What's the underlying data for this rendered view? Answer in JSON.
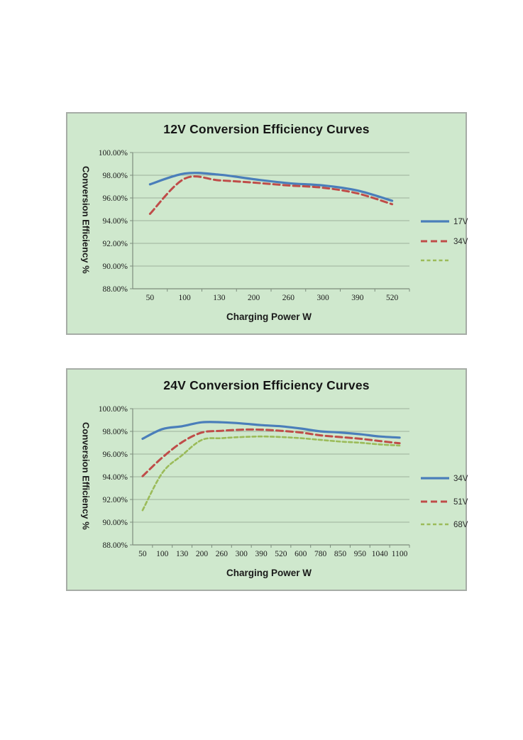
{
  "page": {
    "background": "#ffffff"
  },
  "styles": {
    "chart_background": "#cfe8cd",
    "chart_border": "#a6aca6",
    "grid_color": "#9cb19c",
    "axis_color": "#7d8d7d",
    "series_blue": "#4a7eba",
    "series_red": "#bf4c49",
    "series_green": "#9bbb59"
  },
  "chart_data": [
    {
      "type": "line",
      "title": "12V Conversion Efficiency Curves",
      "xlabel": "Charging Power W",
      "ylabel": "Conversion Efficiency %",
      "categories": [
        "50",
        "100",
        "130",
        "200",
        "260",
        "300",
        "390",
        "520"
      ],
      "y_ticks": [
        "100.00%",
        "98.00%",
        "96.00%",
        "94.00%",
        "92.00%",
        "90.00%",
        "88.00%"
      ],
      "ylim": [
        88,
        100
      ],
      "ytick_step": 2,
      "grid": true,
      "legend_position": "right",
      "legend_ys": [
        152,
        180,
        207
      ],
      "series": [
        {
          "name": "17V",
          "color": "#4a7eba",
          "dash": "solid",
          "values": [
            97.2,
            98.15,
            98.05,
            97.65,
            97.3,
            97.1,
            96.65,
            95.75
          ]
        },
        {
          "name": "34V",
          "color": "#bf4c49",
          "dash": "dashed",
          "values": [
            94.6,
            97.7,
            97.55,
            97.35,
            97.1,
            96.9,
            96.4,
            95.45
          ]
        },
        {
          "name": "",
          "color": "#9bbb59",
          "dash": "short-dash",
          "values": []
        }
      ]
    },
    {
      "type": "line",
      "title": "24V Conversion Efficiency Curves",
      "xlabel": "Charging Power W",
      "ylabel": "Conversion Efficiency %",
      "categories": [
        "50",
        "100",
        "130",
        "200",
        "260",
        "300",
        "390",
        "520",
        "600",
        "780",
        "850",
        "950",
        "1040",
        "1100"
      ],
      "y_ticks": [
        "100.00%",
        "98.00%",
        "96.00%",
        "94.00%",
        "92.00%",
        "90.00%",
        "88.00%"
      ],
      "ylim": [
        88,
        100
      ],
      "ytick_step": 2,
      "grid": true,
      "legend_position": "right",
      "legend_ys": [
        153,
        186,
        218
      ],
      "series": [
        {
          "name": "34V",
          "color": "#4a7eba",
          "dash": "solid",
          "values": [
            97.35,
            98.2,
            98.45,
            98.8,
            98.8,
            98.7,
            98.55,
            98.45,
            98.25,
            98.0,
            97.9,
            97.75,
            97.55,
            97.45
          ]
        },
        {
          "name": "51V",
          "color": "#bf4c49",
          "dash": "dashed",
          "values": [
            94.05,
            95.7,
            97.05,
            97.9,
            98.05,
            98.15,
            98.15,
            98.05,
            97.9,
            97.65,
            97.5,
            97.35,
            97.15,
            96.95
          ]
        },
        {
          "name": "68V",
          "color": "#9bbb59",
          "dash": "short-dash",
          "values": [
            91.05,
            94.35,
            95.9,
            97.25,
            97.4,
            97.5,
            97.55,
            97.5,
            97.4,
            97.25,
            97.1,
            97.0,
            96.85,
            96.75
          ]
        }
      ]
    }
  ]
}
